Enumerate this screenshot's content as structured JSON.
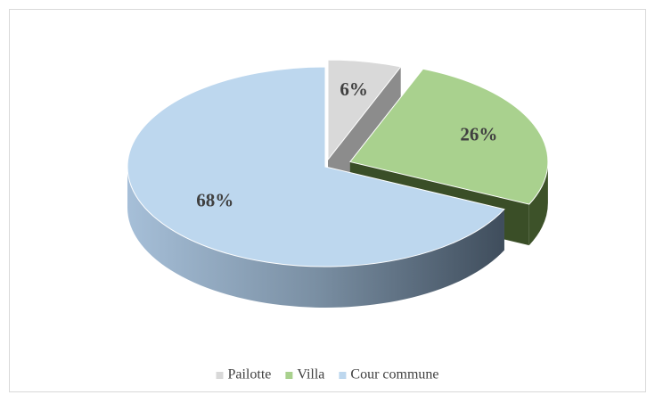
{
  "chart_data": {
    "type": "pie",
    "categories": [
      "Pailotte",
      "Villa",
      "Cour commune"
    ],
    "values": [
      6,
      26,
      68
    ],
    "value_labels": [
      "6%",
      "26%",
      "68%"
    ],
    "colors": [
      "#d9d9d9",
      "#a9d18e",
      "#bdd7ee"
    ],
    "legend": "bottom"
  }
}
